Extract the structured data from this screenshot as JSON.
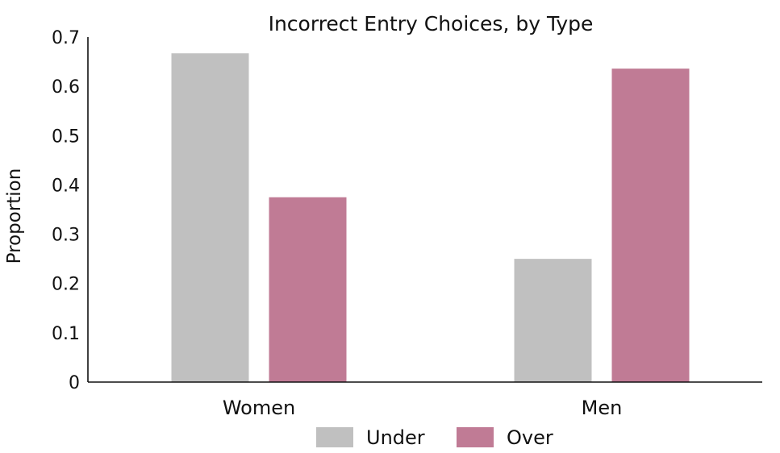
{
  "chart_data": {
    "type": "bar",
    "title": "Incorrect Entry Choices, by Type",
    "xlabel": "",
    "ylabel": "Proportion",
    "categories": [
      "Women",
      "Men"
    ],
    "series": [
      {
        "name": "Under",
        "values": [
          0.667,
          0.25
        ],
        "color": "#c0c0c0"
      },
      {
        "name": "Over",
        "values": [
          0.375,
          0.636
        ],
        "color": "#c07b95"
      }
    ],
    "ylim": [
      0,
      0.7
    ],
    "yticks": [
      "0",
      "0.1",
      "0.2",
      "0.3",
      "0.4",
      "0.5",
      "0.6",
      "0.7"
    ],
    "legend_position": "bottom-center",
    "grid": false
  }
}
